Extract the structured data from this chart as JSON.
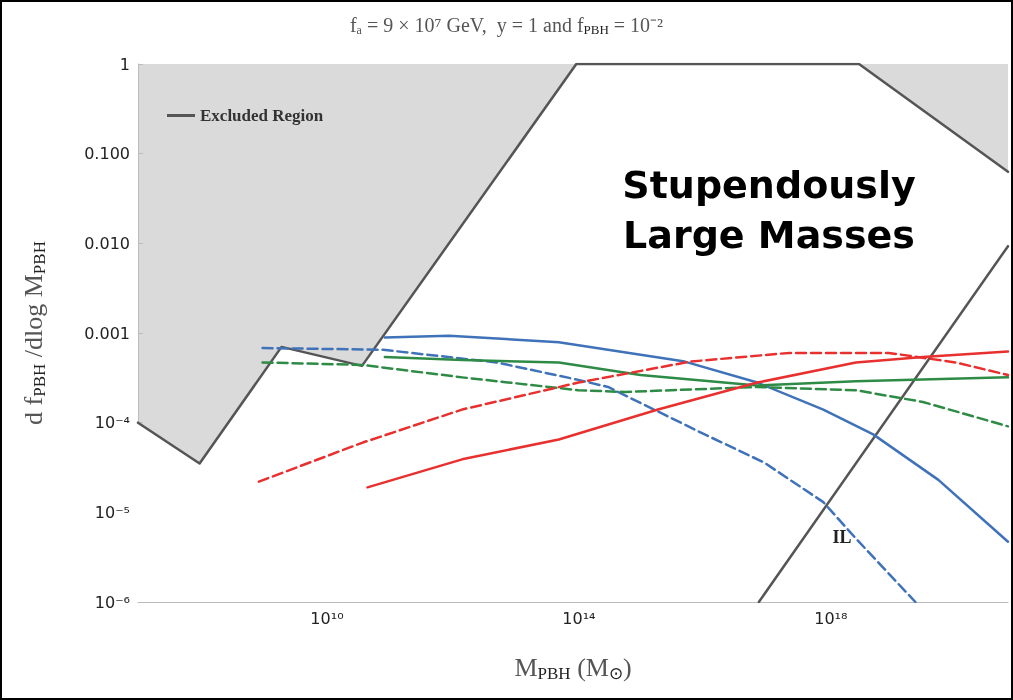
{
  "chart_data": {
    "type": "line",
    "title": "fₐ = 9 × 10⁷ GeV,  y = 1 and f$_{PBH}$ = 10⁻²",
    "xlabel": "M$_{PBH}$ (M$_{⊙}$)",
    "ylabel": "d f$_{PBH}$ /dlog M$_{PBH}$",
    "log": "xy",
    "grid": false,
    "legend": "top left",
    "marker": "none",
    "xlim": [
      10000000.0,
      6.5e+20
    ],
    "ylim": [
      1e-06,
      1
    ],
    "xticks": [
      {
        "value": 100000000.0,
        "label": null
      },
      {
        "value": 1000000000.0,
        "label": null
      },
      {
        "value": 10000000000.0,
        "label": "10¹⁰"
      },
      {
        "value": 100000000000.0,
        "label": null
      },
      {
        "value": 1000000000000.0,
        "label": null
      },
      {
        "value": 10000000000000.0,
        "label": null
      },
      {
        "value": 100000000000000.0,
        "label": "10¹⁴"
      },
      {
        "value": 1000000000000000.0,
        "label": null
      },
      {
        "value": 1e+16,
        "label": null
      },
      {
        "value": 1e+17,
        "label": null
      },
      {
        "value": 1e+18,
        "label": "10¹⁸"
      },
      {
        "value": 1e+19,
        "label": null
      },
      {
        "value": 1e+20,
        "label": null
      }
    ],
    "yticks": [
      {
        "value": 1e-06,
        "label": "10⁻⁶"
      },
      {
        "value": 1e-05,
        "label": "10⁻⁵"
      },
      {
        "value": 0.0001,
        "label": "10⁻⁴"
      },
      {
        "value": 0.001,
        "label": "0.001"
      },
      {
        "value": 0.01,
        "label": "0.010"
      },
      {
        "value": 0.1,
        "label": "0.100"
      },
      1
    ],
    "series": [
      {
        "name": "Excluded Region",
        "type": "area",
        "color": "#555555",
        "x": [
          10000000.0,
          95000000.0,
          1900000000.0,
          36000000000.0,
          91000000000000.0,
          2.8e+18,
          6.5e+20
        ],
        "values": [
          0.0001,
          3.5e-05,
          0.0007,
          0.00043,
          1,
          1,
          0.063
        ]
      },
      {
        "color": "#555555",
        "x": [
          7.2e+16,
          6.5e+20
        ],
        "values": [
          1e-06,
          0.0093
        ]
      },
      {
        "color": "#3f72b8",
        "x": [
          83000000000.0,
          870000000000.0,
          48000000000000.0,
          4800000000000000.0,
          6.8e+16,
          7.6e+17,
          4.7e+18,
          5.1e+19,
          6.5e+20
        ],
        "values": [
          0.00089,
          0.00093,
          0.00079,
          0.00048,
          0.00028,
          0.00014,
          7.4e-05,
          2.3e-05,
          4.7e-06
        ]
      },
      {
        "color": "#3f72b8",
        "line_style": "dashed",
        "x": [
          950000000.0,
          78000000000.0,
          4900000000000.0,
          98000000000000.0,
          290000000000000.0,
          8500000000000000.0,
          8.7e+16,
          7.6e+17,
          2.5e+18,
          2.2e+19
        ],
        "values": [
          0.00068,
          0.00065,
          0.00047,
          0.0003,
          0.00025,
          7.8e-05,
          3.6e-05,
          1.3e-05,
          5.1e-06,
          1e-06
        ]
      },
      {
        "color": "#2e8b45",
        "x": [
          83000000000.0,
          1400000000000.0,
          48000000000000.0,
          950000000000000.0,
          6.8e+16,
          2.5e+18,
          6.5e+20
        ],
        "values": [
          0.00054,
          0.0005,
          0.00047,
          0.00034,
          0.00026,
          0.00029,
          0.00032
        ]
      },
      {
        "color": "#2e8b45",
        "line_style": "dashed",
        "x": [
          950000000.0,
          37000000000.0,
          1400000000000.0,
          98000000000000.0,
          540000000000000.0,
          6.8e+16,
          2.5e+18,
          2.9e+19,
          6.5e+20
        ],
        "values": [
          0.00047,
          0.00044,
          0.00032,
          0.00023,
          0.00022,
          0.00025,
          0.00023,
          0.00017,
          9.1e-05
        ]
      },
      {
        "color": "#e8302f",
        "x": [
          44000000000.0,
          1400000000000.0,
          48000000000000.0,
          1800000000000000.0,
          6.8e+16,
          2.5e+18,
          2.9e+19,
          6.5e+20
        ],
        "values": [
          1.9e-05,
          3.9e-05,
          6.5e-05,
          0.00014,
          0.00028,
          0.00047,
          0.00054,
          0.00062
        ]
      },
      {
        "color": "#e8302f",
        "line_style": "dashed",
        "x": [
          830000000.0,
          37000000000.0,
          1400000000000.0,
          98000000000000.0,
          5900000000000000.0,
          2.2e+17,
          8.3e+18,
          9.5e+19,
          6.5e+20
        ],
        "values": [
          2.2e-05,
          6e-05,
          0.00014,
          0.00028,
          0.00048,
          0.0006,
          0.0006,
          0.00047,
          0.00034
        ]
      }
    ],
    "annotations": [
      "Stupendously Large Masses",
      "IL"
    ]
  }
}
